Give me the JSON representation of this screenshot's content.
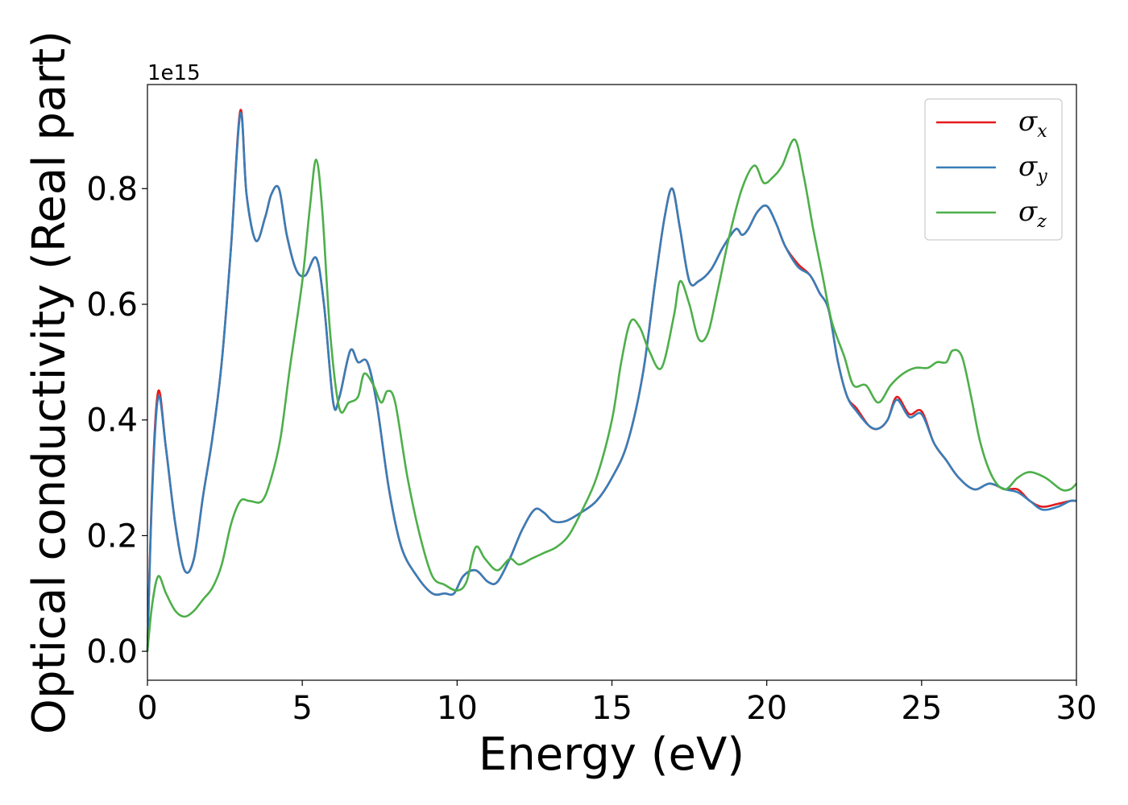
{
  "chart_data": {
    "type": "line",
    "title": "",
    "xlabel": "Energy (eV)",
    "ylabel": "Optical conductivity (Real part)",
    "y_offset_label": "1e15",
    "xlim": [
      0,
      30
    ],
    "ylim": [
      -0.05,
      0.98
    ],
    "xticks": [
      0,
      5,
      10,
      15,
      20,
      25,
      30
    ],
    "xtick_labels": [
      "0",
      "5",
      "10",
      "15",
      "20",
      "25",
      "30"
    ],
    "yticks": [
      0.0,
      0.2,
      0.4,
      0.6,
      0.8
    ],
    "ytick_labels": [
      "0.0",
      "0.2",
      "0.4",
      "0.6",
      "0.8"
    ],
    "grid": false,
    "legend_placement": "top-right",
    "series": [
      {
        "name": "σx",
        "symbol": "σ",
        "subscript": "x",
        "color": "#e41a1c",
        "x": [
          0,
          0.15,
          0.35,
          0.6,
          0.9,
          1.2,
          1.5,
          1.8,
          2.1,
          2.4,
          2.7,
          3.0,
          3.2,
          3.5,
          3.8,
          4.0,
          4.25,
          4.5,
          4.8,
          5.1,
          5.45,
          5.7,
          6.0,
          6.2,
          6.55,
          6.8,
          7.1,
          7.4,
          7.8,
          8.2,
          8.7,
          9.2,
          9.6,
          9.9,
          10.2,
          10.6,
          11.0,
          11.3,
          11.7,
          12.1,
          12.5,
          12.8,
          13.1,
          13.5,
          14.0,
          14.5,
          15.0,
          15.5,
          16.0,
          16.4,
          16.7,
          16.95,
          17.2,
          17.5,
          17.8,
          18.2,
          18.6,
          19.0,
          19.2,
          19.4,
          19.7,
          20.0,
          20.3,
          20.6,
          21.0,
          21.4,
          21.7,
          22.0,
          22.3,
          22.6,
          22.9,
          23.3,
          23.6,
          23.9,
          24.2,
          24.6,
          25.0,
          25.4,
          25.8,
          26.2,
          26.7,
          27.2,
          27.7,
          28.1,
          28.5,
          28.9,
          29.4,
          29.8,
          30.0
        ],
        "y": [
          0.0,
          0.28,
          0.45,
          0.35,
          0.22,
          0.14,
          0.16,
          0.27,
          0.37,
          0.5,
          0.7,
          0.935,
          0.79,
          0.71,
          0.75,
          0.79,
          0.8,
          0.72,
          0.66,
          0.65,
          0.68,
          0.6,
          0.43,
          0.44,
          0.52,
          0.5,
          0.5,
          0.43,
          0.28,
          0.18,
          0.13,
          0.1,
          0.1,
          0.1,
          0.13,
          0.14,
          0.12,
          0.12,
          0.16,
          0.21,
          0.245,
          0.24,
          0.225,
          0.225,
          0.24,
          0.26,
          0.3,
          0.36,
          0.48,
          0.64,
          0.75,
          0.8,
          0.73,
          0.64,
          0.64,
          0.66,
          0.7,
          0.73,
          0.72,
          0.73,
          0.76,
          0.77,
          0.74,
          0.7,
          0.67,
          0.65,
          0.62,
          0.59,
          0.5,
          0.44,
          0.42,
          0.39,
          0.385,
          0.4,
          0.44,
          0.41,
          0.415,
          0.36,
          0.33,
          0.3,
          0.28,
          0.29,
          0.28,
          0.28,
          0.26,
          0.25,
          0.255,
          0.26,
          0.26
        ]
      },
      {
        "name": "σy",
        "symbol": "σ",
        "subscript": "y",
        "color": "#377eb8",
        "x": [
          0,
          0.15,
          0.35,
          0.6,
          0.9,
          1.2,
          1.5,
          1.8,
          2.1,
          2.4,
          2.7,
          3.0,
          3.2,
          3.5,
          3.8,
          4.0,
          4.25,
          4.5,
          4.8,
          5.1,
          5.45,
          5.7,
          6.0,
          6.2,
          6.55,
          6.8,
          7.1,
          7.4,
          7.8,
          8.2,
          8.7,
          9.2,
          9.6,
          9.9,
          10.2,
          10.6,
          11.0,
          11.3,
          11.7,
          12.1,
          12.5,
          12.8,
          13.1,
          13.5,
          14.0,
          14.5,
          15.0,
          15.5,
          16.0,
          16.4,
          16.7,
          16.95,
          17.2,
          17.5,
          17.8,
          18.2,
          18.6,
          19.0,
          19.2,
          19.4,
          19.7,
          20.0,
          20.3,
          20.6,
          21.0,
          21.4,
          21.7,
          22.0,
          22.3,
          22.6,
          22.9,
          23.3,
          23.6,
          23.9,
          24.2,
          24.6,
          25.0,
          25.4,
          25.8,
          26.2,
          26.7,
          27.2,
          27.7,
          28.1,
          28.5,
          28.9,
          29.4,
          29.8,
          30.0
        ],
        "y": [
          0.0,
          0.27,
          0.44,
          0.35,
          0.22,
          0.14,
          0.16,
          0.27,
          0.37,
          0.5,
          0.7,
          0.93,
          0.79,
          0.71,
          0.75,
          0.79,
          0.8,
          0.72,
          0.66,
          0.65,
          0.68,
          0.6,
          0.43,
          0.44,
          0.52,
          0.5,
          0.5,
          0.43,
          0.28,
          0.18,
          0.13,
          0.1,
          0.1,
          0.1,
          0.13,
          0.14,
          0.12,
          0.12,
          0.16,
          0.21,
          0.245,
          0.24,
          0.225,
          0.225,
          0.24,
          0.26,
          0.3,
          0.36,
          0.48,
          0.64,
          0.75,
          0.8,
          0.73,
          0.64,
          0.64,
          0.66,
          0.7,
          0.73,
          0.72,
          0.73,
          0.76,
          0.77,
          0.74,
          0.7,
          0.665,
          0.65,
          0.62,
          0.59,
          0.5,
          0.44,
          0.415,
          0.39,
          0.385,
          0.4,
          0.435,
          0.405,
          0.41,
          0.36,
          0.33,
          0.3,
          0.28,
          0.29,
          0.28,
          0.275,
          0.26,
          0.245,
          0.25,
          0.26,
          0.26
        ]
      },
      {
        "name": "σz",
        "symbol": "σ",
        "subscript": "z",
        "color": "#4daf4a",
        "x": [
          0,
          0.15,
          0.35,
          0.6,
          0.9,
          1.2,
          1.5,
          1.8,
          2.1,
          2.4,
          2.7,
          3.0,
          3.3,
          3.7,
          4.0,
          4.3,
          4.6,
          5.0,
          5.25,
          5.45,
          5.65,
          5.9,
          6.2,
          6.5,
          6.8,
          7.0,
          7.3,
          7.55,
          7.75,
          8.0,
          8.4,
          8.8,
          9.2,
          9.6,
          10.0,
          10.3,
          10.6,
          10.9,
          11.3,
          11.7,
          12.0,
          12.4,
          12.8,
          13.2,
          13.6,
          14.0,
          14.5,
          15.0,
          15.3,
          15.6,
          15.9,
          16.2,
          16.6,
          17.0,
          17.2,
          17.5,
          17.8,
          18.1,
          18.4,
          18.8,
          19.2,
          19.6,
          19.9,
          20.2,
          20.5,
          20.9,
          21.2,
          21.5,
          21.8,
          22.1,
          22.5,
          22.8,
          23.2,
          23.6,
          24.0,
          24.4,
          24.8,
          25.2,
          25.5,
          25.8,
          26.0,
          26.3,
          26.6,
          26.9,
          27.3,
          27.7,
          28.1,
          28.5,
          29.0,
          29.5,
          29.8,
          30.0
        ],
        "y": [
          0.0,
          0.08,
          0.13,
          0.1,
          0.07,
          0.06,
          0.07,
          0.09,
          0.11,
          0.15,
          0.22,
          0.26,
          0.26,
          0.26,
          0.3,
          0.37,
          0.49,
          0.64,
          0.77,
          0.85,
          0.76,
          0.55,
          0.42,
          0.43,
          0.44,
          0.48,
          0.46,
          0.43,
          0.45,
          0.43,
          0.3,
          0.2,
          0.13,
          0.115,
          0.105,
          0.12,
          0.18,
          0.16,
          0.14,
          0.16,
          0.15,
          0.16,
          0.17,
          0.18,
          0.2,
          0.24,
          0.3,
          0.4,
          0.5,
          0.57,
          0.56,
          0.52,
          0.49,
          0.58,
          0.64,
          0.6,
          0.54,
          0.55,
          0.62,
          0.72,
          0.8,
          0.84,
          0.81,
          0.82,
          0.84,
          0.885,
          0.82,
          0.73,
          0.65,
          0.57,
          0.51,
          0.46,
          0.46,
          0.43,
          0.46,
          0.48,
          0.49,
          0.49,
          0.5,
          0.5,
          0.52,
          0.51,
          0.44,
          0.36,
          0.3,
          0.28,
          0.3,
          0.31,
          0.3,
          0.28,
          0.28,
          0.29
        ]
      }
    ]
  }
}
